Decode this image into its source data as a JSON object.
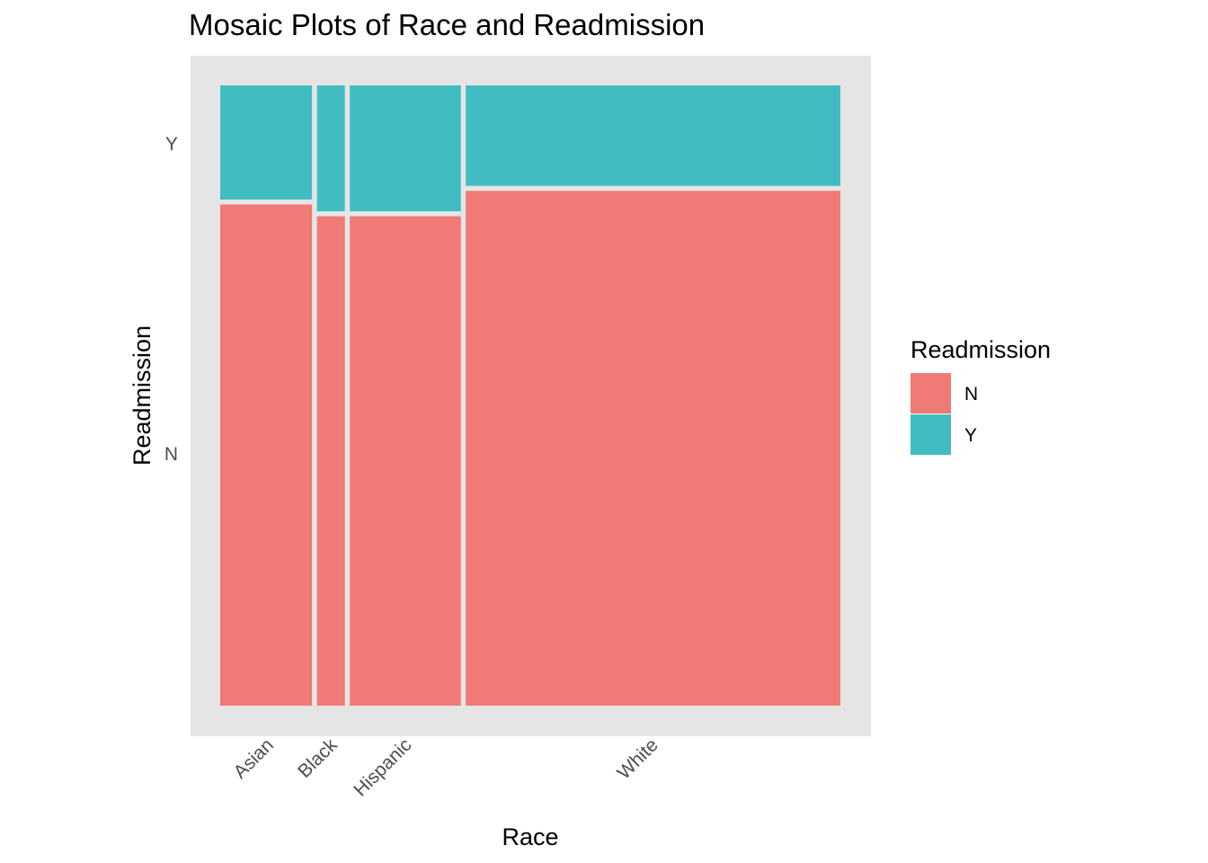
{
  "chart_data": {
    "type": "mosaic",
    "title": "Mosaic Plots of Race and Readmission",
    "xlabel": "Race",
    "ylabel": "Readmission",
    "categories": [
      "Asian",
      "Black",
      "Hispanic",
      "White"
    ],
    "category_proportions": [
      0.152,
      0.053,
      0.187,
      0.608
    ],
    "series": [
      {
        "name": "N",
        "color": "#F07A75",
        "values": [
          0.812,
          0.793,
          0.793,
          0.834
        ]
      },
      {
        "name": "Y",
        "color": "#41BDC2",
        "values": [
          0.188,
          0.207,
          0.207,
          0.166
        ]
      }
    ],
    "y_ticks": [
      "N",
      "Y"
    ],
    "legend": {
      "title": "Readmission",
      "position": "right",
      "entries": [
        "N",
        "Y"
      ]
    },
    "panel_background": "#E5E5E5",
    "grid": false
  }
}
